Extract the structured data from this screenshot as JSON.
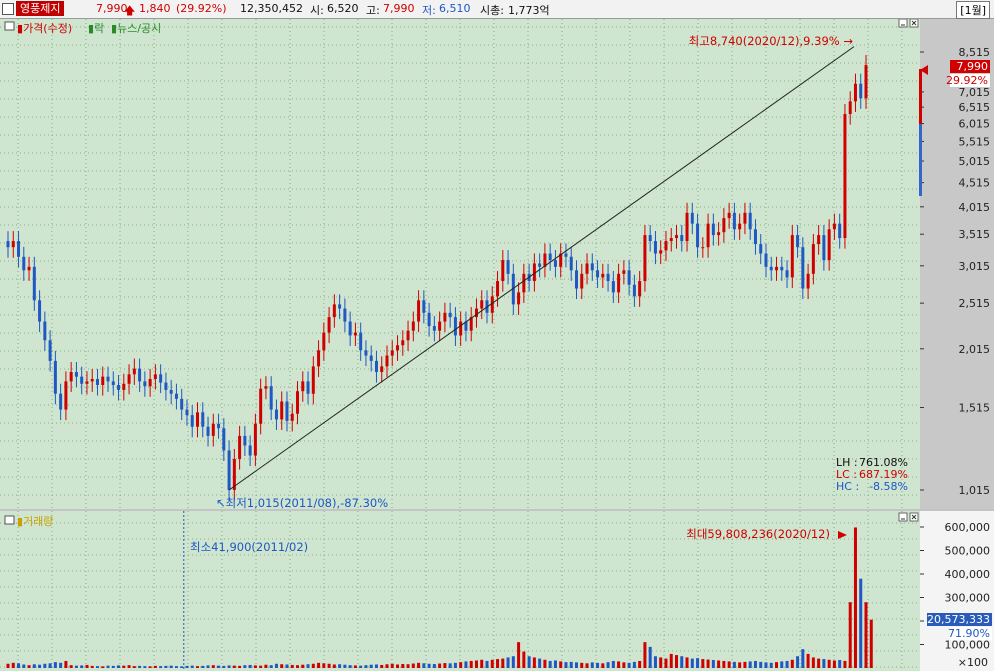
{
  "header": {
    "stock_name": "영풍제지",
    "price": "7,990",
    "change_arrow": "up-arrow-icon",
    "change": "1,840",
    "change_pct": "(29.92%)",
    "volume": "12,350,452",
    "open_label": "시:",
    "open": "6,520",
    "high_label": "고:",
    "high": "7,990",
    "low_label": "저:",
    "low": "6,510",
    "mcap_label": "시총:",
    "mcap": "1,773억",
    "period": "[1월]"
  },
  "price_panel": {
    "legend_price": "가격(수정)",
    "legend_rak": "락",
    "legend_news": "뉴스/공시",
    "max_label": "최고8,740(2020/12),9.39%",
    "min_label": "최저1,015(2011/08),-87.30%",
    "current_price": "7,990",
    "current_pct": "29.92%",
    "stats": [
      {
        "label": "LH :",
        "value": "761.08%",
        "color": "#111111"
      },
      {
        "label": "LC :",
        "value": "687.19%",
        "color": "#d00000"
      },
      {
        "label": "HC :",
        "value": "-8.58%",
        "color": "#1f57c4"
      }
    ]
  },
  "volume_panel": {
    "legend": "거래량",
    "max_label": "최대59,808,236(2020/12)",
    "min_label": "최소41,900(2011/02)",
    "current_volume": "20,573,333",
    "current_pct": "71.90%",
    "unit": "×100"
  },
  "colors": {
    "up": "#d00000",
    "down": "#1f57c4",
    "background": "#cfe5cf",
    "axis_background": "#c8c8c8",
    "trend_line": "#222222"
  },
  "chart_data": {
    "type": "candlestick",
    "period": "monthly",
    "price_axis": {
      "ticks": [
        1015,
        1515,
        2015,
        2515,
        3015,
        3515,
        4015,
        4515,
        5015,
        5515,
        6015,
        6515,
        7015,
        8515
      ],
      "scale": "log",
      "range": [
        1015,
        8740
      ]
    },
    "volume_axis": {
      "ticks": [
        100000,
        200000,
        300000,
        400000,
        500000,
        600000
      ],
      "unit": "×100",
      "range": [
        0,
        600000
      ]
    },
    "max": {
      "value": 8740,
      "date": "2020/12"
    },
    "min": {
      "value": 1015,
      "date": "2011/08"
    },
    "volume_max": {
      "value": 59808236,
      "date": "2020/12"
    },
    "volume_min": {
      "value": 41900,
      "date": "2011/02"
    },
    "closes": [
      3300,
      3400,
      3150,
      2950,
      3000,
      2550,
      2300,
      2100,
      1900,
      1620,
      1500,
      1720,
      1800,
      1760,
      1700,
      1720,
      1740,
      1690,
      1760,
      1720,
      1690,
      1650,
      1700,
      1780,
      1830,
      1720,
      1680,
      1740,
      1780,
      1710,
      1650,
      1620,
      1580,
      1500,
      1460,
      1380,
      1480,
      1380,
      1320,
      1400,
      1370,
      1230,
      1015,
      1180,
      1320,
      1260,
      1200,
      1400,
      1660,
      1680,
      1500,
      1430,
      1560,
      1420,
      1470,
      1640,
      1720,
      1620,
      1850,
      2000,
      2180,
      2350,
      2500,
      2450,
      2300,
      2150,
      2180,
      2000,
      1950,
      1900,
      1800,
      1850,
      1950,
      2000,
      2050,
      2100,
      2200,
      2300,
      2550,
      2400,
      2250,
      2200,
      2300,
      2400,
      2350,
      2150,
      2300,
      2200,
      2350,
      2450,
      2550,
      2400,
      2600,
      2800,
      3100,
      2900,
      2500,
      2650,
      2900,
      2800,
      3050,
      3000,
      3200,
      3100,
      3000,
      3200,
      3150,
      2950,
      2700,
      2900,
      3050,
      2950,
      2850,
      2900,
      2800,
      2650,
      2900,
      2950,
      2750,
      2600,
      2800,
      3500,
      3400,
      3200,
      3250,
      3400,
      3450,
      3500,
      3400,
      3900,
      3700,
      3300,
      3300,
      3700,
      3500,
      3550,
      3800,
      3900,
      3600,
      3700,
      3900,
      3600,
      3350,
      3200,
      3000,
      2950,
      3000,
      2950,
      2850,
      3500,
      3300,
      2700,
      2900,
      3350,
      3500,
      3100,
      3600,
      3700,
      3450,
      6300,
      6700,
      7300,
      6800,
      7990
    ],
    "volumes_x100": [
      18000,
      22000,
      20000,
      15000,
      12000,
      16000,
      14000,
      18000,
      20000,
      25000,
      22000,
      30000,
      12000,
      10000,
      11000,
      13000,
      9000,
      8000,
      7000,
      10000,
      9000,
      11000,
      10000,
      12000,
      8000,
      9000,
      8000,
      7000,
      9000,
      8000,
      9000,
      10000,
      8000,
      7000,
      9000,
      10000,
      8000,
      9000,
      11000,
      12000,
      10000,
      9000,
      11000,
      10000,
      9000,
      12000,
      13000,
      11000,
      10000,
      14000,
      12000,
      18000,
      16000,
      15000,
      13000,
      12000,
      14000,
      16000,
      18000,
      22000,
      20000,
      18000,
      15000,
      16000,
      14000,
      12000,
      11000,
      10000,
      12000,
      14000,
      15000,
      13000,
      16000,
      18000,
      15000,
      17000,
      16000,
      19000,
      22000,
      20000,
      18000,
      17000,
      19000,
      21000,
      20000,
      22000,
      25000,
      28000,
      30000,
      32000,
      35000,
      30000,
      35000,
      38000,
      40000,
      45000,
      50000,
      110000,
      70000,
      50000,
      45000,
      40000,
      35000,
      30000,
      32000,
      28000,
      25000,
      26000,
      24000,
      22000,
      20000,
      24000,
      22000,
      20000,
      25000,
      30000,
      28000,
      24000,
      22000,
      26000,
      30000,
      110000,
      90000,
      50000,
      45000,
      40000,
      60000,
      55000,
      50000,
      45000,
      40000,
      42000,
      38000,
      36000,
      34000,
      32000,
      30000,
      28000,
      26000,
      24000,
      26000,
      28000,
      30000,
      26000,
      24000,
      22000,
      25000,
      28000,
      30000,
      35000,
      50000,
      80000,
      60000,
      45000,
      40000,
      38000,
      35000,
      32000,
      34000,
      30000,
      280000,
      598082,
      380000,
      280000,
      205733
    ]
  }
}
